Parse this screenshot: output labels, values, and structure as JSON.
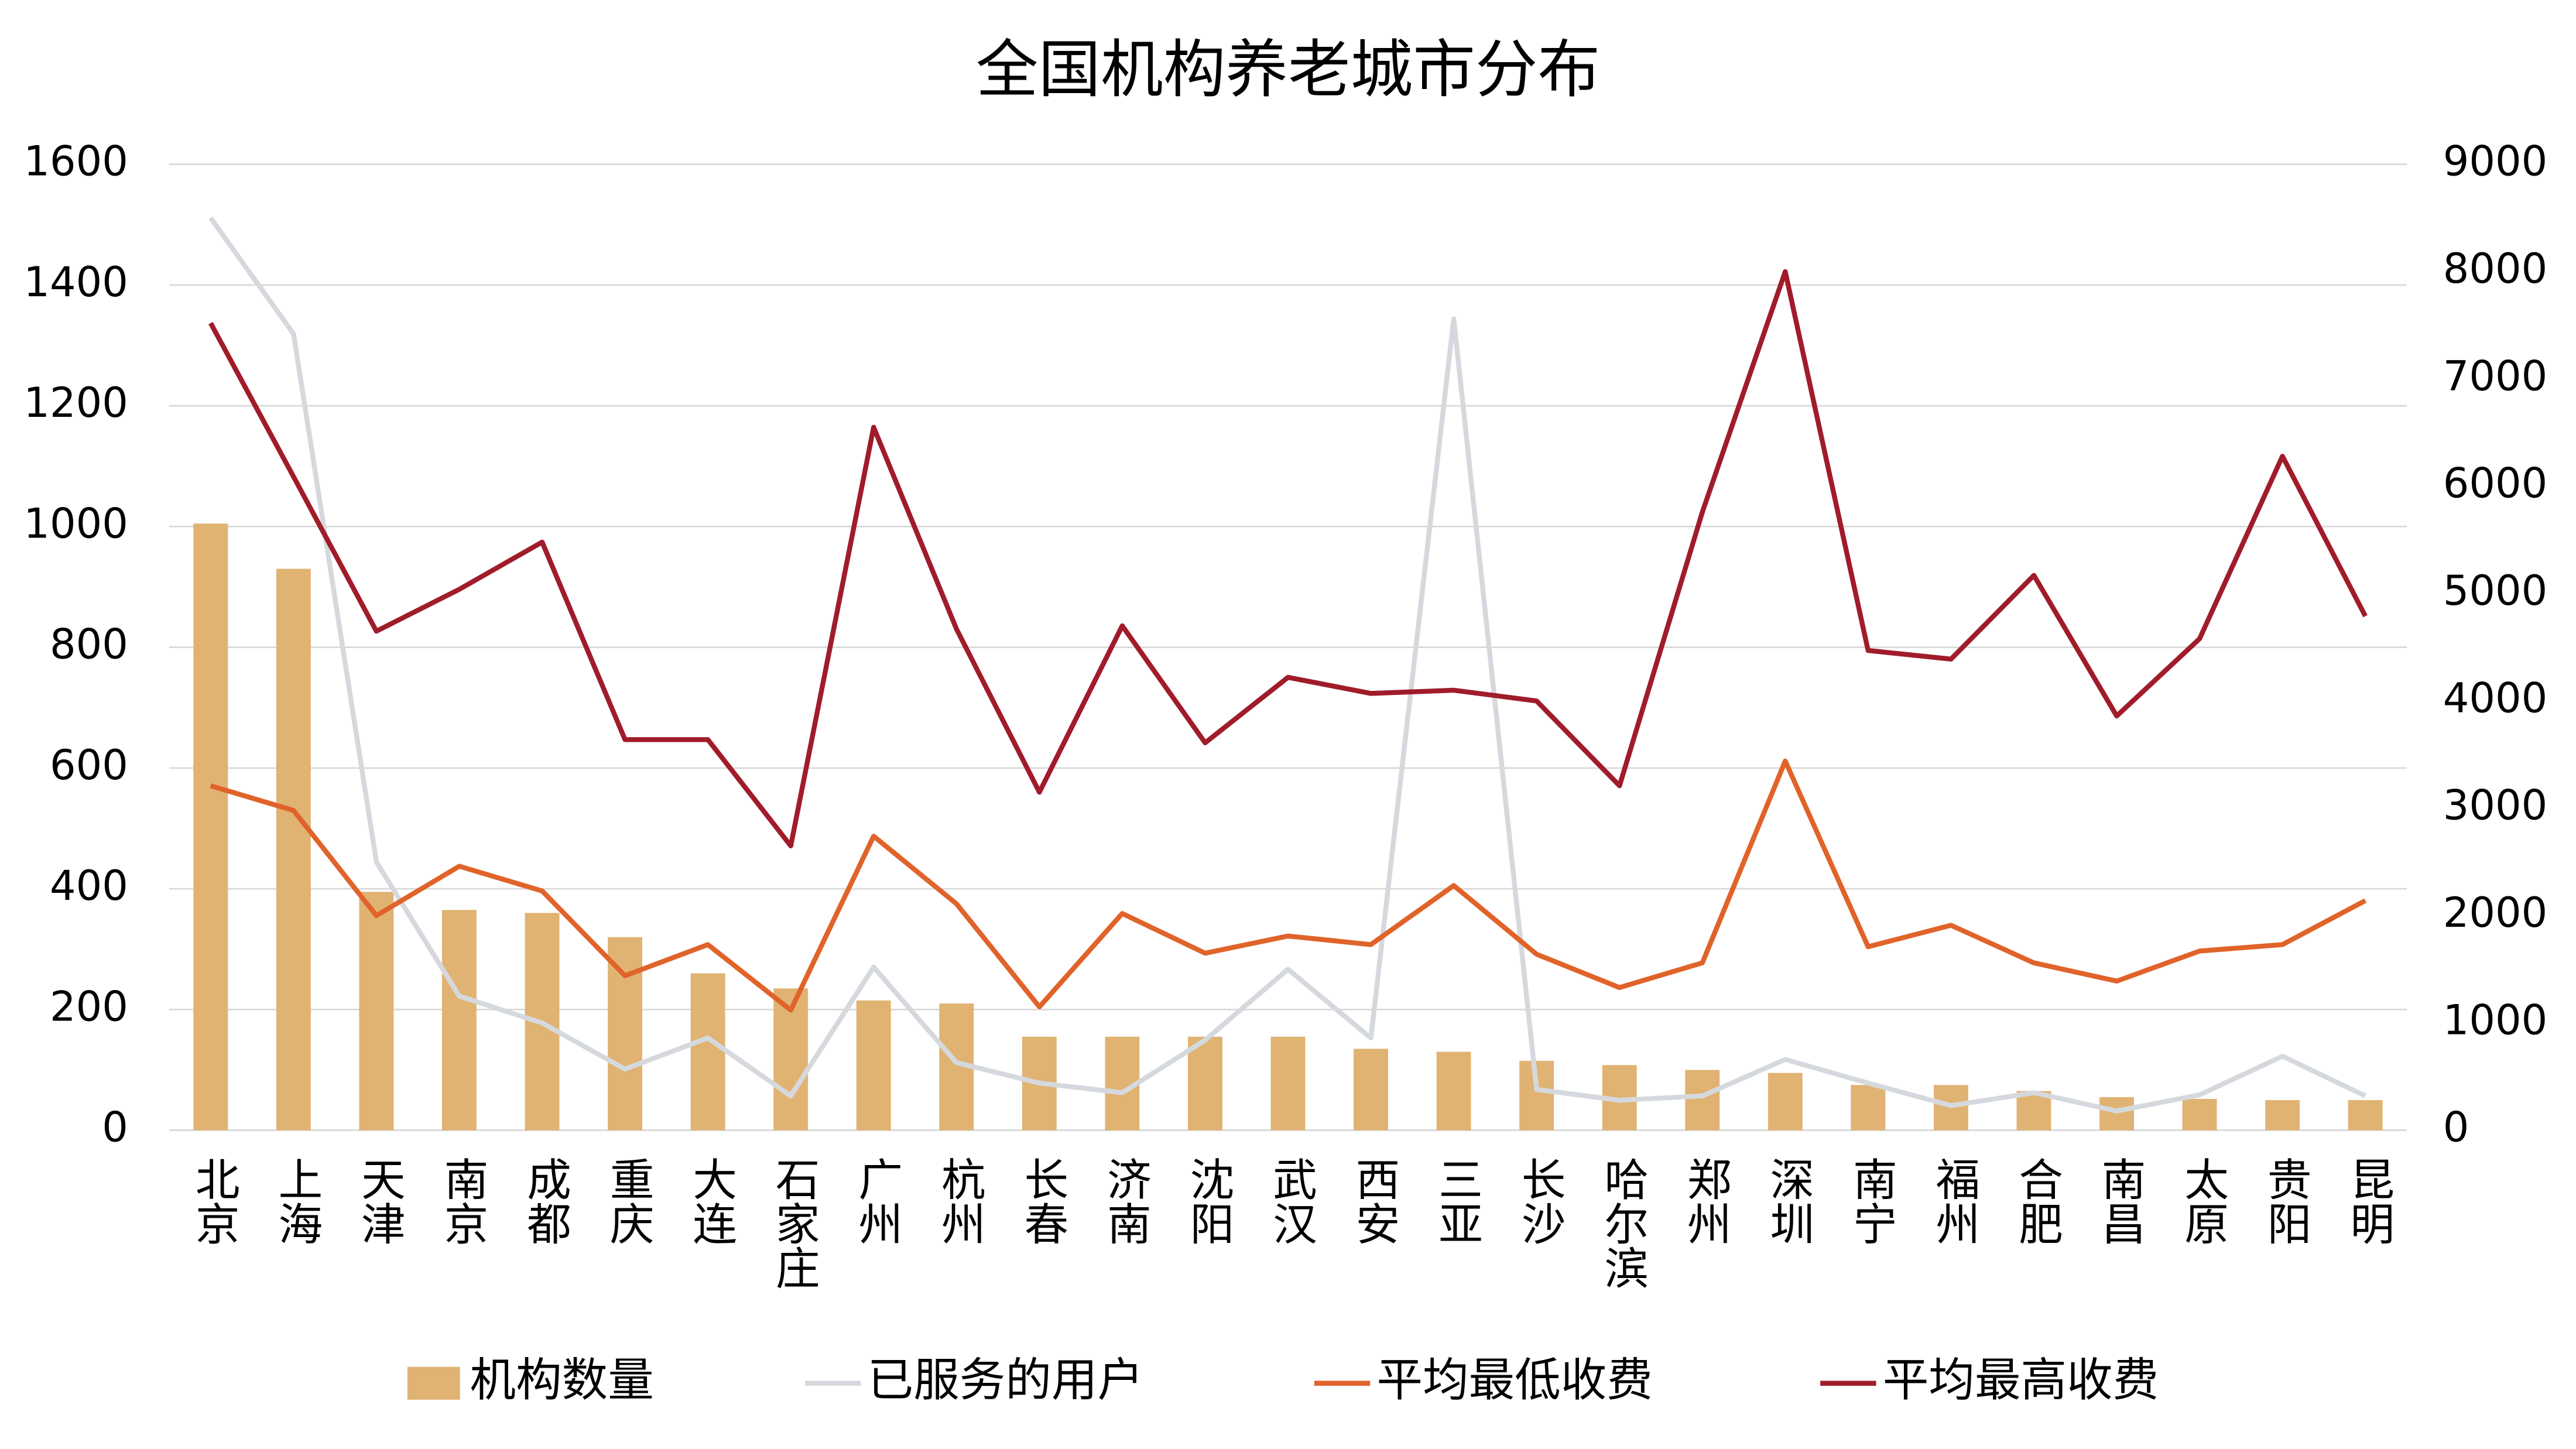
{
  "chart_data": {
    "type": "bar",
    "title": "全国机构养老城市分布",
    "categories": [
      "北京",
      "上海",
      "天津",
      "南京",
      "成都",
      "重庆",
      "大连",
      "石家庄",
      "广州",
      "杭州",
      "长春",
      "济南",
      "沈阳",
      "武汉",
      "西安",
      "三亚",
      "长沙",
      "哈尔滨",
      "郑州",
      "深圳",
      "南宁",
      "福州",
      "合肥",
      "南昌",
      "太原",
      "贵阳",
      "昆明"
    ],
    "series": [
      {
        "name": "机构数量",
        "type": "bar",
        "color": "#e0b373",
        "values": [
          1005,
          930,
          395,
          365,
          360,
          320,
          260,
          235,
          215,
          210,
          155,
          155,
          155,
          155,
          135,
          130,
          115,
          108,
          100,
          95,
          75,
          75,
          65,
          55,
          52,
          50,
          50
        ]
      },
      {
        "name": "已服务的用户",
        "type": "line",
        "axis": "y2",
        "color": "#d5d9de",
        "values": [
          8500,
          7420,
          2500,
          1250,
          1000,
          570,
          860,
          320,
          1520,
          630,
          440,
          350,
          840,
          1500,
          860,
          7560,
          380,
          280,
          320,
          660,
          440,
          230,
          350,
          180,
          330,
          690,
          320
        ]
      },
      {
        "name": "平均最低收费",
        "type": "line",
        "axis": "y2",
        "color": "#e0632a",
        "values": [
          3210,
          2980,
          2000,
          2460,
          2230,
          1440,
          1730,
          1120,
          2740,
          2110,
          1150,
          2020,
          1650,
          1810,
          1730,
          2280,
          1640,
          1330,
          1560,
          3440,
          1710,
          1910,
          1560,
          1390,
          1670,
          1730,
          2140
        ]
      },
      {
        "name": "平均最高收费",
        "type": "line",
        "axis": "y2",
        "color": "#a01c2a",
        "values": [
          7520,
          6090,
          4650,
          5040,
          5480,
          3640,
          3640,
          2650,
          6550,
          4670,
          3150,
          4700,
          3610,
          4220,
          4070,
          4100,
          4000,
          3210,
          5760,
          8000,
          4470,
          4390,
          5170,
          3860,
          4580,
          6280,
          4790
        ]
      }
    ],
    "ylim": [
      0,
      1600
    ],
    "yticks": [
      0,
      200,
      400,
      600,
      800,
      1000,
      1200,
      1400,
      1600
    ],
    "y2lim": [
      0,
      9000
    ],
    "y2ticks": [
      0,
      1000,
      2000,
      3000,
      4000,
      5000,
      6000,
      7000,
      8000,
      9000
    ],
    "grid": true,
    "legend": "bottom"
  }
}
